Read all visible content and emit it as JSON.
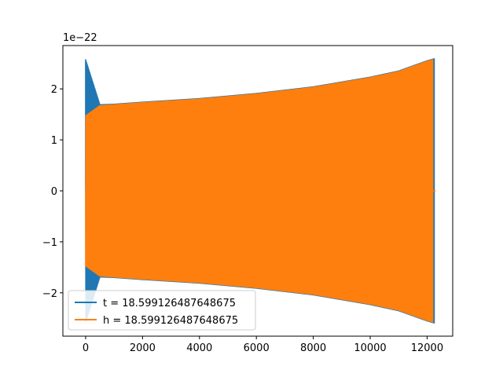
{
  "chart_data": {
    "type": "line",
    "title": "",
    "xlabel": "",
    "ylabel": "",
    "y_offset_label": "1e−22",
    "xlim": [
      -800,
      12900
    ],
    "ylim": [
      -2.85,
      2.85
    ],
    "x_ticks": [
      0,
      2000,
      4000,
      6000,
      8000,
      10000,
      12000
    ],
    "x_tick_labels": [
      "0",
      "2000",
      "4000",
      "6000",
      "8000",
      "10000",
      "12000"
    ],
    "y_ticks": [
      -2,
      -1,
      0,
      1,
      2
    ],
    "y_tick_labels": [
      "−2",
      "−1",
      "0",
      "1",
      "2"
    ],
    "grid": false,
    "legend_position": "lower-left",
    "series": [
      {
        "name": "t = 18.599126487648675",
        "color": "#1f77b4",
        "envelope": {
          "x": [
            0,
            500,
            1000,
            2000,
            4000,
            6000,
            8000,
            10000,
            11000,
            12000,
            12250
          ],
          "amplitude": [
            2.58,
            1.7,
            1.71,
            1.75,
            1.82,
            1.92,
            2.05,
            2.24,
            2.36,
            2.56,
            2.6
          ]
        },
        "end_x": 12250
      },
      {
        "name": "h = 18.599126487648675",
        "color": "#ff7f0e",
        "envelope": {
          "x": [
            0,
            500,
            1000,
            2000,
            4000,
            6000,
            8000,
            10000,
            11000,
            12000,
            12200
          ],
          "amplitude": [
            1.48,
            1.68,
            1.7,
            1.74,
            1.81,
            1.91,
            2.04,
            2.23,
            2.35,
            2.55,
            2.58
          ]
        },
        "end_x": 12200,
        "tail_to_x": 12300
      }
    ]
  }
}
